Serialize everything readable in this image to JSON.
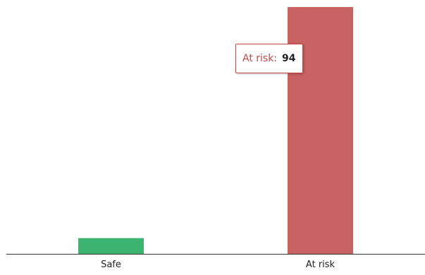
{
  "chart_data": {
    "type": "bar",
    "categories": [
      "Safe",
      "At risk"
    ],
    "values": [
      6,
      94
    ],
    "colors": [
      "#3cb371",
      "#c96262"
    ],
    "ylim": [
      0,
      94
    ],
    "grid": false,
    "title": "",
    "xlabel": "",
    "ylabel": ""
  },
  "tooltip": {
    "label": "At risk:",
    "value": "94"
  }
}
